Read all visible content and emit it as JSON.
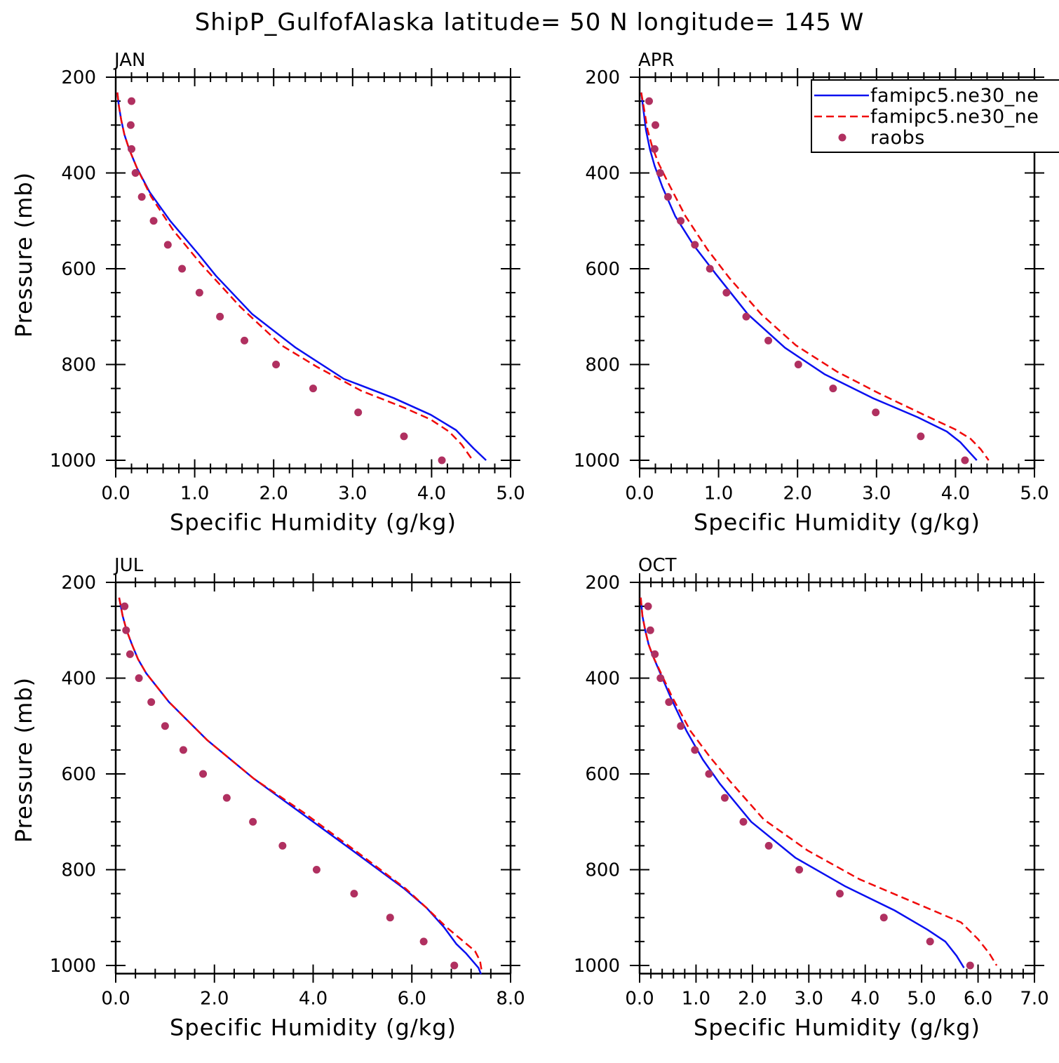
{
  "title": "ShipP_GulfofAlaska  latitude= 50 N longitude= 145 W",
  "colors": {
    "model_a": "#0a10f0",
    "model_b": "#f00a0a",
    "obs": "#b03060"
  },
  "chart_data": [
    {
      "type": "line",
      "panel": "JAN",
      "xlabel": "Specific Humidity (g/kg)",
      "ylabel": "Pressure (mb)",
      "xlim": [
        0,
        5
      ],
      "ylim": [
        200,
        1000
      ],
      "y_inverted": true,
      "x_ticks": [
        0,
        1,
        2,
        3,
        4,
        5
      ],
      "x_tick_labels": [
        "0.0",
        "1.0",
        "2.0",
        "3.0",
        "4.0",
        "5.0"
      ],
      "y_ticks": [
        200,
        400,
        600,
        800,
        1000
      ],
      "y_tick_labels": [
        "200",
        "400",
        "600",
        "800",
        "1000"
      ],
      "series": [
        {
          "name": "famipc5.ne30_ne",
          "style": "solid",
          "color": "#0a10f0",
          "x": [
            0.02,
            0.04,
            0.07,
            0.11,
            0.17,
            0.27,
            0.43,
            0.69,
            1.05,
            1.27,
            1.73,
            2.28,
            2.89,
            3.52,
            3.99,
            4.31,
            4.53,
            4.69
          ],
          "y": [
            232,
            260,
            290,
            320,
            350,
            390,
            440,
            500,
            570,
            615,
            695,
            765,
            830,
            870,
            905,
            937,
            975,
            1000
          ]
        },
        {
          "name": "famipc5.ne30_ne",
          "style": "dashed",
          "color": "#f00a0a",
          "x": [
            0.02,
            0.04,
            0.07,
            0.11,
            0.17,
            0.27,
            0.45,
            0.73,
            1.08,
            1.58,
            2.1,
            2.55,
            3.11,
            3.65,
            3.99,
            4.22,
            4.38,
            4.52
          ],
          "y": [
            232,
            260,
            290,
            320,
            350,
            390,
            450,
            520,
            590,
            680,
            760,
            805,
            855,
            890,
            915,
            940,
            967,
            1000
          ]
        }
      ],
      "scatter": {
        "name": "raobs",
        "color": "#b03060",
        "x": [
          0.2,
          0.19,
          0.2,
          0.25,
          0.33,
          0.48,
          0.66,
          0.84,
          1.06,
          1.32,
          1.63,
          2.03,
          2.5,
          3.07,
          3.65,
          4.13
        ],
        "y": [
          250,
          300,
          350,
          400,
          450,
          500,
          550,
          600,
          650,
          700,
          750,
          800,
          850,
          900,
          950,
          1000
        ]
      }
    },
    {
      "type": "line",
      "panel": "APR",
      "xlabel": "Specific Humidity (g/kg)",
      "ylabel": "",
      "xlim": [
        0,
        5
      ],
      "ylim": [
        200,
        1000
      ],
      "y_inverted": true,
      "x_ticks": [
        0,
        1,
        2,
        3,
        4,
        5
      ],
      "x_tick_labels": [
        "0.0",
        "1.0",
        "2.0",
        "3.0",
        "4.0",
        "5.0"
      ],
      "y_ticks": [
        200,
        400,
        600,
        800,
        1000
      ],
      "y_tick_labels": [
        "200",
        "400",
        "600",
        "800",
        "1000"
      ],
      "series": [
        {
          "name": "famipc5.ne30_ne",
          "style": "solid",
          "color": "#0a10f0",
          "x": [
            0.02,
            0.05,
            0.08,
            0.13,
            0.19,
            0.29,
            0.45,
            0.68,
            0.96,
            1.37,
            1.84,
            2.34,
            2.95,
            3.52,
            3.89,
            4.06,
            4.17,
            4.27
          ],
          "y": [
            232,
            270,
            310,
            350,
            385,
            430,
            490,
            550,
            610,
            695,
            765,
            820,
            870,
            910,
            940,
            962,
            982,
            1000
          ]
        },
        {
          "name": "famipc5.ne30_ne",
          "style": "dashed",
          "color": "#f00a0a",
          "x": [
            0.02,
            0.06,
            0.1,
            0.16,
            0.24,
            0.36,
            0.58,
            0.86,
            1.14,
            1.54,
            1.98,
            2.5,
            3.03,
            3.6,
            3.99,
            4.19,
            4.32,
            4.42
          ],
          "y": [
            232,
            270,
            310,
            345,
            380,
            420,
            490,
            560,
            620,
            695,
            760,
            815,
            860,
            905,
            935,
            955,
            977,
            1000
          ]
        }
      ],
      "scatter": {
        "name": "raobs",
        "color": "#b03060",
        "x": [
          0.12,
          0.2,
          0.19,
          0.26,
          0.36,
          0.52,
          0.7,
          0.89,
          1.1,
          1.35,
          1.63,
          2.01,
          2.45,
          2.99,
          3.56,
          4.12
        ],
        "y": [
          250,
          300,
          350,
          400,
          450,
          500,
          550,
          600,
          650,
          700,
          750,
          800,
          850,
          900,
          950,
          1000
        ]
      }
    },
    {
      "type": "line",
      "panel": "JUL",
      "xlabel": "Specific Humidity (g/kg)",
      "ylabel": "Pressure (mb)",
      "xlim": [
        0,
        8
      ],
      "ylim": [
        200,
        1000
      ],
      "y_inverted": true,
      "x_ticks": [
        0,
        2,
        4,
        6,
        8
      ],
      "x_tick_labels": [
        "0.0",
        "2.0",
        "4.0",
        "6.0",
        "8.0"
      ],
      "y_ticks": [
        200,
        400,
        600,
        800,
        1000
      ],
      "y_tick_labels": [
        "200",
        "400",
        "600",
        "800",
        "1000"
      ],
      "series": [
        {
          "name": "famipc5.ne30_ne",
          "style": "solid",
          "color": "#0a10f0",
          "x": [
            0.07,
            0.14,
            0.22,
            0.33,
            0.45,
            0.62,
            1.08,
            1.86,
            2.8,
            3.8,
            4.8,
            5.85,
            6.3,
            6.65,
            6.9,
            7.1,
            7.35,
            7.4
          ],
          "y": [
            232,
            270,
            300,
            330,
            360,
            390,
            450,
            530,
            610,
            685,
            760,
            840,
            880,
            920,
            955,
            975,
            1005,
            1018
          ]
        },
        {
          "name": "famipc5.ne30_ne",
          "style": "dashed",
          "color": "#f00a0a",
          "x": [
            0.07,
            0.14,
            0.22,
            0.33,
            0.45,
            0.62,
            1.08,
            1.86,
            2.8,
            3.8,
            4.85,
            5.88,
            6.3,
            6.7,
            7.05,
            7.28,
            7.38,
            7.42
          ],
          "y": [
            232,
            270,
            300,
            330,
            360,
            390,
            450,
            530,
            610,
            680,
            760,
            840,
            880,
            920,
            950,
            970,
            990,
            1015
          ]
        }
      ],
      "scatter": {
        "name": "raobs",
        "color": "#b03060",
        "x": [
          0.18,
          0.21,
          0.29,
          0.47,
          0.72,
          1.0,
          1.37,
          1.77,
          2.25,
          2.78,
          3.38,
          4.07,
          4.83,
          5.56,
          6.24,
          6.86
        ],
        "y": [
          250,
          300,
          350,
          400,
          450,
          500,
          550,
          600,
          650,
          700,
          750,
          800,
          850,
          900,
          950,
          1000
        ]
      }
    },
    {
      "type": "line",
      "panel": "OCT",
      "xlabel": "Specific Humidity (g/kg)",
      "ylabel": "",
      "xlim": [
        0,
        7
      ],
      "ylim": [
        200,
        1000
      ],
      "y_inverted": true,
      "x_ticks": [
        0,
        1,
        2,
        3,
        4,
        5,
        6,
        7
      ],
      "x_tick_labels": [
        "0.0",
        "1.0",
        "2.0",
        "3.0",
        "4.0",
        "5.0",
        "6.0",
        "7.0"
      ],
      "y_ticks": [
        200,
        400,
        600,
        800,
        1000
      ],
      "y_tick_labels": [
        "200",
        "400",
        "600",
        "800",
        "1000"
      ],
      "series": [
        {
          "name": "famipc5.ne30_ne",
          "style": "solid",
          "color": "#0a10f0",
          "x": [
            0.02,
            0.05,
            0.1,
            0.16,
            0.24,
            0.35,
            0.55,
            0.83,
            1.12,
            1.42,
            1.98,
            2.76,
            3.65,
            4.52,
            5.1,
            5.42,
            5.62,
            5.75
          ],
          "y": [
            232,
            270,
            300,
            330,
            355,
            385,
            440,
            510,
            570,
            620,
            700,
            775,
            835,
            885,
            925,
            950,
            980,
            1005
          ]
        },
        {
          "name": "famipc5.ne30_ne",
          "style": "dashed",
          "color": "#f00a0a",
          "x": [
            0.02,
            0.05,
            0.1,
            0.16,
            0.24,
            0.36,
            0.58,
            0.9,
            1.25,
            1.6,
            2.2,
            2.98,
            3.9,
            4.9,
            5.7,
            6.0,
            6.2,
            6.33
          ],
          "y": [
            232,
            270,
            300,
            330,
            355,
            385,
            440,
            510,
            565,
            615,
            695,
            760,
            820,
            870,
            910,
            945,
            975,
            1000
          ]
        }
      ],
      "scatter": {
        "name": "raobs",
        "color": "#b03060",
        "x": [
          0.15,
          0.19,
          0.27,
          0.37,
          0.52,
          0.73,
          0.98,
          1.23,
          1.51,
          1.84,
          2.29,
          2.83,
          3.55,
          4.33,
          5.15,
          5.86
        ],
        "y": [
          250,
          300,
          350,
          400,
          450,
          500,
          550,
          600,
          650,
          700,
          750,
          800,
          850,
          900,
          950,
          1000
        ]
      }
    }
  ],
  "legend": {
    "placement": "top-right of APR panel",
    "entries": [
      {
        "label": "famipc5.ne30_ne",
        "style": "solid",
        "color": "#0a10f0"
      },
      {
        "label": "famipc5.ne30_ne",
        "style": "dashed",
        "color": "#f00a0a"
      },
      {
        "label": "raobs",
        "style": "marker",
        "color": "#b03060"
      }
    ]
  }
}
